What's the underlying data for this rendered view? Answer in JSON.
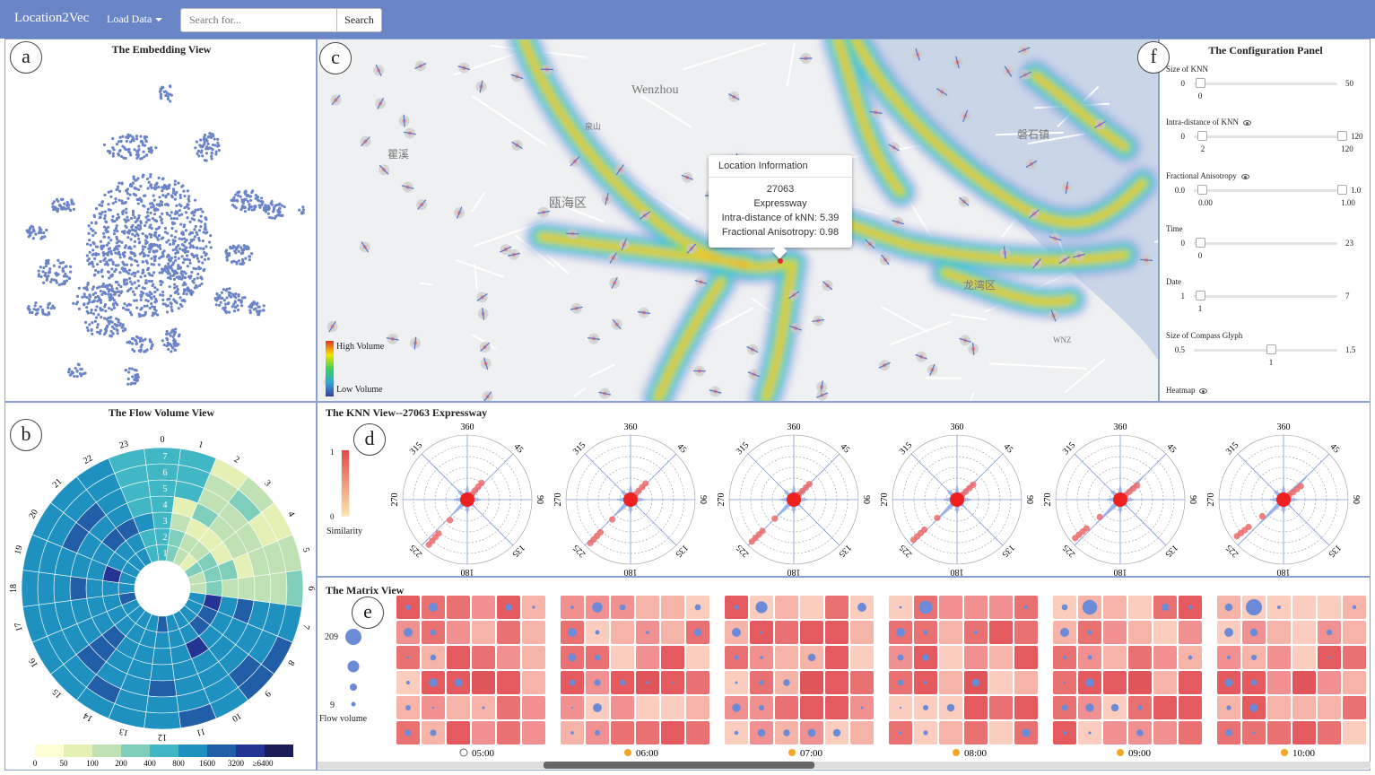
{
  "navbar": {
    "brand": "Location2Vec",
    "load_label": "Load Data",
    "search_placeholder": "Search for...",
    "search_button": "Search",
    "color": "#6a85c5"
  },
  "badges": [
    "a",
    "b",
    "c",
    "d",
    "e",
    "f"
  ],
  "embedding": {
    "title": "The Embedding View",
    "point_color": "#6b84c7"
  },
  "map": {
    "legend_high": "High Volume",
    "legend_low": "Low Volume",
    "labels": [
      "Wenzhou",
      "瞿溪",
      "瓯海区",
      "磐石镇",
      "龙湾区",
      "泉山",
      "WNZ"
    ]
  },
  "tooltip": {
    "header": "Location Information",
    "id": "27063",
    "type": "Expressway",
    "knn_intra": "Intra-distance of kNN: 5.39",
    "anisotropy": "Fractional Anisotropy: 0.98"
  },
  "config": {
    "title": "The Configuration Panel",
    "items": [
      {
        "label": "Size of KNN",
        "min": "0",
        "max": "50",
        "value": "0",
        "frac": 0.0
      },
      {
        "label": "Intra-distance of KNN",
        "min": "0",
        "max": "120",
        "value": "2",
        "frac": 0.0,
        "value2": "120",
        "frac2": 1.0,
        "eye": true
      },
      {
        "label": "Fractional Anisotropy",
        "min": "0.0",
        "max": "1.0",
        "value": "0.00",
        "frac": 0.0,
        "value2": "1.00",
        "frac2": 1.0,
        "eye": true
      },
      {
        "label": "Time",
        "min": "0",
        "max": "23",
        "value": "0",
        "frac": 0.0
      },
      {
        "label": "Date",
        "min": "1",
        "max": "7",
        "value": "1",
        "frac": 0.0
      },
      {
        "label": "Size of Compass Glyph",
        "min": "0.5",
        "max": "1.5",
        "value": "1",
        "frac": 0.5
      }
    ],
    "heatmap_label": "Heatmap"
  },
  "flow": {
    "title": "The Flow Volume View",
    "hours": [
      "0",
      "1",
      "2",
      "3",
      "4",
      "5",
      "6",
      "7",
      "8",
      "9",
      "10",
      "11",
      "12",
      "13",
      "14",
      "15",
      "16",
      "17",
      "18",
      "19",
      "20",
      "21",
      "22",
      "23"
    ],
    "days": [
      "1",
      "2",
      "3",
      "4",
      "5",
      "6",
      "7"
    ],
    "legend": {
      "ticks": [
        "0",
        "50",
        "100",
        "200",
        "400",
        "800",
        "1600",
        "3200",
        "≥6400"
      ],
      "colors": [
        "#fffdd4",
        "#e5f0b4",
        "#bfe1b4",
        "#7fcdbb",
        "#41b6c4",
        "#1e91c0",
        "#225ea8",
        "#253494",
        "#1c1d58"
      ]
    }
  },
  "knn": {
    "title": "The KNN View--27063 Expressway",
    "similarity_label": "Similarity",
    "sim_max": "1",
    "sim_min": "0",
    "angle_labels": [
      "360",
      "45",
      "90",
      "135",
      "180",
      "225",
      "270",
      "315"
    ],
    "glyph_count": 6
  },
  "matrix": {
    "title": "The Matrix View",
    "legend_max": "209",
    "legend_min": "9",
    "legend_label": "Flow volume",
    "times": [
      "05:00",
      "06:00",
      "07:00",
      "08:00",
      "09:00",
      "10:00"
    ],
    "time_icons": [
      "moon-icon",
      "sun-icon",
      "sun-icon",
      "sun-icon",
      "sun-icon",
      "sun-icon"
    ]
  }
}
